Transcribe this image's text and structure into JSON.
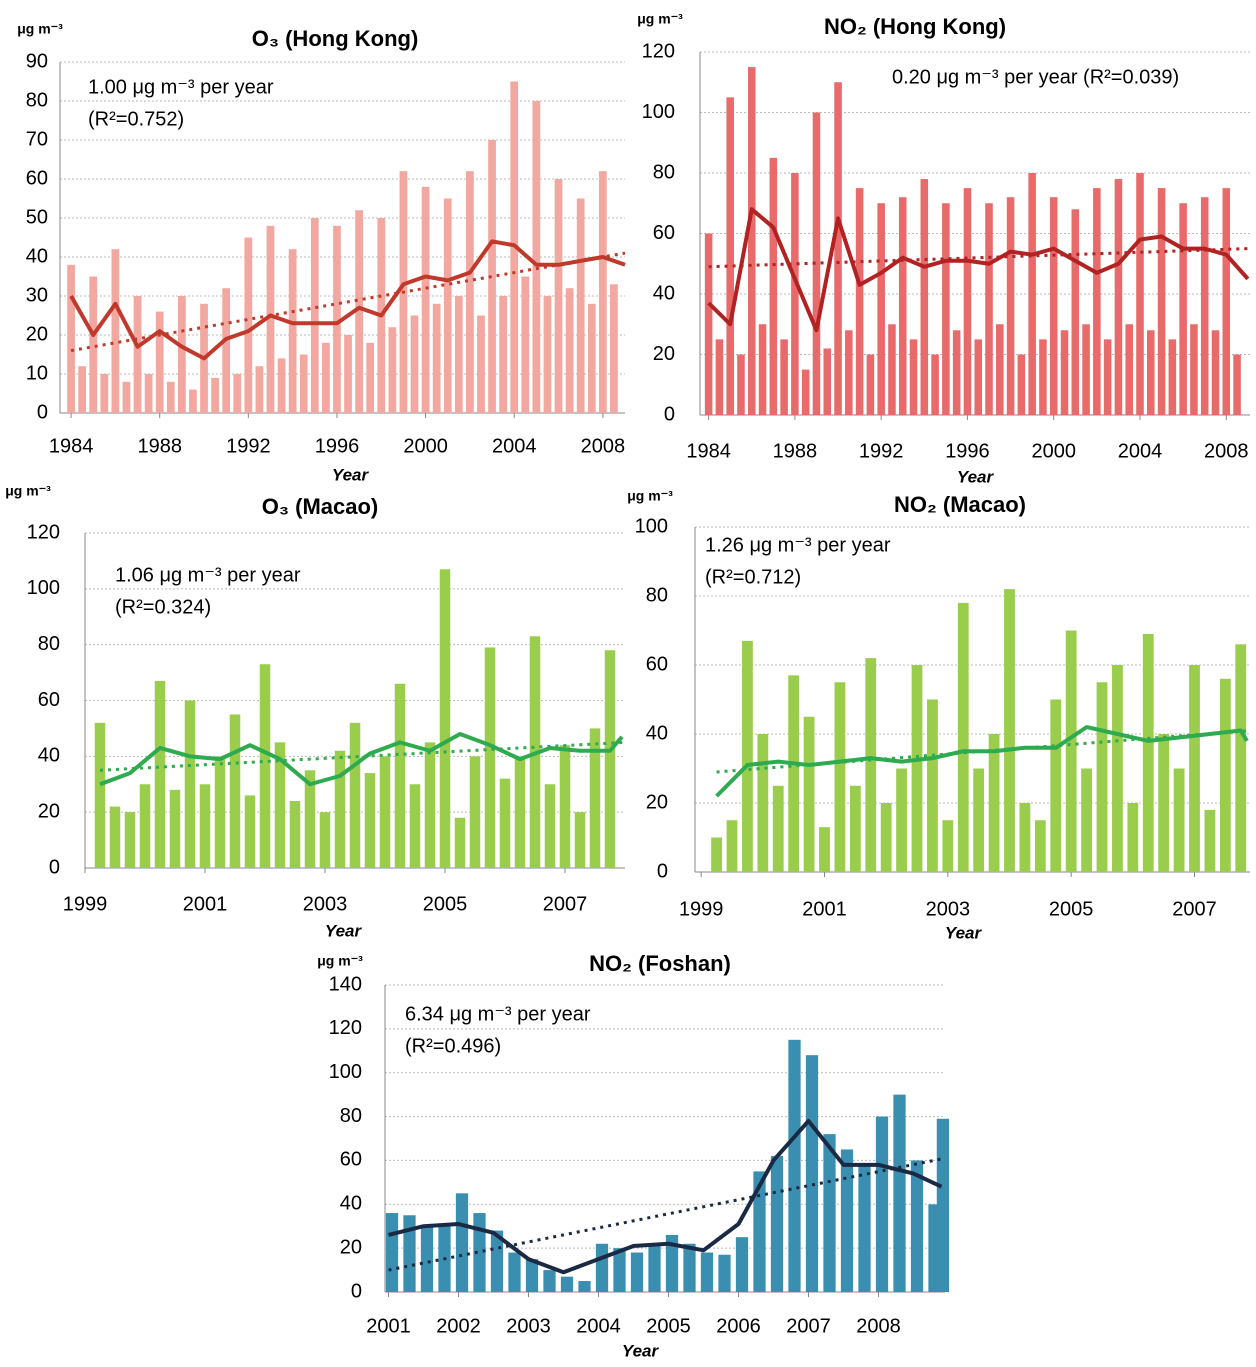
{
  "chart_data": [
    {
      "type": "bar",
      "title": "O₃ (Hong Kong)",
      "y_unit": "μg m⁻³",
      "x_label": "Year",
      "annotations": [
        "1.00 μg m⁻³ per year",
        "(R²=0.752)"
      ],
      "xlim": [
        1983.5,
        2009
      ],
      "ylim": [
        0,
        90
      ],
      "xticks": [
        1984,
        1988,
        1992,
        1996,
        2000,
        2004,
        2008
      ],
      "yticks": [
        0,
        10,
        20,
        30,
        40,
        50,
        60,
        70,
        80,
        90
      ],
      "grid": true,
      "series": [
        {
          "type": "bar",
          "color": "#f2a8a0",
          "x": [
            1984,
            1984.5,
            1985,
            1985.5,
            1986,
            1986.5,
            1987,
            1987.5,
            1988,
            1988.5,
            1989,
            1989.5,
            1990,
            1990.5,
            1991,
            1991.5,
            1992,
            1992.5,
            1993,
            1993.5,
            1994,
            1994.5,
            1995,
            1995.5,
            1996,
            1996.5,
            1997,
            1997.5,
            1998,
            1998.5,
            1999,
            1999.5,
            2000,
            2000.5,
            2001,
            2001.5,
            2002,
            2002.5,
            2003,
            2003.5,
            2004,
            2004.5,
            2005,
            2005.5,
            2006,
            2006.5,
            2007,
            2007.5,
            2008,
            2008.5
          ],
          "values": [
            38,
            12,
            35,
            10,
            42,
            8,
            30,
            10,
            26,
            8,
            30,
            6,
            28,
            9,
            32,
            10,
            45,
            12,
            48,
            14,
            42,
            15,
            50,
            18,
            48,
            20,
            52,
            18,
            50,
            22,
            62,
            25,
            58,
            28,
            55,
            30,
            62,
            25,
            70,
            30,
            85,
            35,
            80,
            30,
            60,
            32,
            55,
            28,
            62,
            33
          ]
        },
        {
          "type": "line",
          "color": "#c0392b",
          "x": [
            1984,
            1985,
            1986,
            1987,
            1988,
            1989,
            1990,
            1991,
            1992,
            1993,
            1994,
            1995,
            1996,
            1997,
            1998,
            1999,
            2000,
            2001,
            2002,
            2003,
            2004,
            2005,
            2006,
            2007,
            2008,
            2009
          ],
          "values": [
            30,
            20,
            28,
            17,
            21,
            17,
            14,
            19,
            21,
            25,
            23,
            23,
            23,
            27,
            25,
            33,
            35,
            34,
            36,
            44,
            43,
            38,
            38,
            39,
            40,
            38
          ]
        },
        {
          "type": "line",
          "dash": true,
          "color": "#c0392b",
          "x": [
            1984,
            2009
          ],
          "values": [
            16,
            41
          ]
        }
      ]
    },
    {
      "type": "bar",
      "title": "NO₂ (Hong Kong)",
      "y_unit": "μg m⁻³",
      "x_label": "Year",
      "annotations": [
        "0.20 μg m⁻³ per year (R²=0.039)"
      ],
      "xlim": [
        1983.6,
        2009.1
      ],
      "ylim": [
        0,
        120
      ],
      "xticks": [
        1984,
        1988,
        1992,
        1996,
        2000,
        2004,
        2008
      ],
      "yticks": [
        0,
        20,
        40,
        60,
        80,
        100,
        120
      ],
      "grid": true,
      "series": [
        {
          "type": "bar",
          "color": "#e86a6a",
          "x": [
            1984,
            1984.5,
            1985,
            1985.5,
            1986,
            1986.5,
            1987,
            1987.5,
            1988,
            1988.5,
            1989,
            1989.5,
            1990,
            1990.5,
            1991,
            1991.5,
            1992,
            1992.5,
            1993,
            1993.5,
            1994,
            1994.5,
            1995,
            1995.5,
            1996,
            1996.5,
            1997,
            1997.5,
            1998,
            1998.5,
            1999,
            1999.5,
            2000,
            2000.5,
            2001,
            2001.5,
            2002,
            2002.5,
            2003,
            2003.5,
            2004,
            2004.5,
            2005,
            2005.5,
            2006,
            2006.5,
            2007,
            2007.5,
            2008,
            2008.5
          ],
          "values": [
            60,
            25,
            105,
            20,
            115,
            30,
            85,
            25,
            80,
            15,
            100,
            22,
            110,
            28,
            75,
            20,
            70,
            30,
            72,
            25,
            78,
            20,
            70,
            28,
            75,
            25,
            70,
            30,
            72,
            20,
            80,
            25,
            72,
            28,
            68,
            30,
            75,
            25,
            78,
            30,
            80,
            28,
            75,
            25,
            70,
            30,
            72,
            28,
            75,
            20
          ]
        },
        {
          "type": "line",
          "color": "#b22222",
          "x": [
            1984,
            1985,
            1986,
            1987,
            1988,
            1989,
            1990,
            1991,
            1992,
            1993,
            1994,
            1995,
            1996,
            1997,
            1998,
            1999,
            2000,
            2001,
            2002,
            2003,
            2004,
            2005,
            2006,
            2007,
            2008,
            2009
          ],
          "values": [
            37,
            30,
            68,
            62,
            45,
            28,
            65,
            43,
            47,
            52,
            49,
            51,
            51,
            50,
            54,
            53,
            55,
            51,
            47,
            50,
            58,
            59,
            55,
            55,
            53,
            45
          ]
        },
        {
          "type": "line",
          "dash": true,
          "color": "#b22222",
          "x": [
            1984,
            2009
          ],
          "values": [
            49,
            55
          ]
        }
      ]
    },
    {
      "type": "bar",
      "title": "O₃ (Macao)",
      "y_unit": "μg m⁻³",
      "x_label": "Year",
      "annotations": [
        "1.06 μg m⁻³ per year",
        "(R²=0.324)"
      ],
      "xlim": [
        1999,
        2008
      ],
      "ylim": [
        0,
        120
      ],
      "xticks": [
        1999,
        2001,
        2003,
        2005,
        2007
      ],
      "yticks": [
        0,
        20,
        40,
        60,
        80,
        100,
        120
      ],
      "grid": true,
      "series": [
        {
          "type": "bar",
          "color": "#9acd4c",
          "x": [
            1999.25,
            1999.5,
            1999.75,
            2000,
            2000.25,
            2000.5,
            2000.75,
            2001,
            2001.25,
            2001.5,
            2001.75,
            2002,
            2002.25,
            2002.5,
            2002.75,
            2003,
            2003.25,
            2003.5,
            2003.75,
            2004,
            2004.25,
            2004.5,
            2004.75,
            2005,
            2005.25,
            2005.5,
            2005.75,
            2006,
            2006.25,
            2006.5,
            2006.75,
            2007,
            2007.25,
            2007.5,
            2007.75
          ],
          "values": [
            52,
            22,
            20,
            30,
            67,
            28,
            60,
            30,
            40,
            55,
            26,
            73,
            45,
            24,
            35,
            20,
            42,
            52,
            34,
            40,
            66,
            30,
            45,
            107,
            18,
            40,
            79,
            32,
            40,
            83,
            30,
            44,
            20,
            50,
            78
          ]
        },
        {
          "type": "line",
          "color": "#2eaa4f",
          "x": [
            1999.25,
            1999.75,
            2000.25,
            2000.75,
            2001.25,
            2001.75,
            2002.25,
            2002.75,
            2003.25,
            2003.75,
            2004.25,
            2004.75,
            2005.25,
            2005.75,
            2006.25,
            2006.75,
            2007.25,
            2007.75,
            2007.95
          ],
          "values": [
            30,
            34,
            43,
            40,
            39,
            44,
            39,
            30,
            33,
            41,
            45,
            42,
            48,
            44,
            39,
            43,
            42,
            42,
            47
          ]
        },
        {
          "type": "line",
          "dash": true,
          "color": "#2eaa4f",
          "x": [
            1999.25,
            2008
          ],
          "values": [
            35,
            45
          ]
        }
      ]
    },
    {
      "type": "bar",
      "title": "NO₂ (Macao)",
      "y_unit": "μg m⁻³",
      "x_label": "Year",
      "annotations": [
        "1.26 μg m⁻³ per year",
        "(R²=0.712)"
      ],
      "xlim": [
        1998.9,
        2007.9
      ],
      "ylim": [
        0,
        100
      ],
      "xticks": [
        1999,
        2001,
        2003,
        2005,
        2007
      ],
      "yticks": [
        0,
        20,
        40,
        60,
        80,
        100
      ],
      "grid": true,
      "series": [
        {
          "type": "bar",
          "color": "#9acd4c",
          "x": [
            1999.25,
            1999.5,
            1999.75,
            2000,
            2000.25,
            2000.5,
            2000.75,
            2001,
            2001.25,
            2001.5,
            2001.75,
            2002,
            2002.25,
            2002.5,
            2002.75,
            2003,
            2003.25,
            2003.5,
            2003.75,
            2004,
            2004.25,
            2004.5,
            2004.75,
            2005,
            2005.25,
            2005.5,
            2005.75,
            2006,
            2006.25,
            2006.5,
            2006.75,
            2007,
            2007.25,
            2007.5,
            2007.75
          ],
          "values": [
            10,
            15,
            67,
            40,
            25,
            57,
            45,
            13,
            55,
            25,
            62,
            20,
            30,
            60,
            50,
            15,
            78,
            30,
            40,
            82,
            20,
            15,
            50,
            70,
            30,
            55,
            60,
            20,
            69,
            40,
            30,
            60,
            18,
            56,
            66
          ]
        },
        {
          "type": "line",
          "color": "#2eaa4f",
          "x": [
            1999.25,
            1999.75,
            2000.25,
            2000.75,
            2001.25,
            2001.75,
            2002.25,
            2002.75,
            2003.25,
            2003.75,
            2004.25,
            2004.75,
            2005.25,
            2005.75,
            2006.25,
            2006.75,
            2007.25,
            2007.75,
            2007.85
          ],
          "values": [
            22,
            31,
            32,
            31,
            32,
            33,
            32,
            33,
            35,
            35,
            36,
            36,
            42,
            40,
            38,
            39,
            40,
            41,
            38
          ]
        },
        {
          "type": "line",
          "dash": true,
          "color": "#2eaa4f",
          "x": [
            1999.25,
            2007.9
          ],
          "values": [
            29,
            41
          ]
        }
      ]
    },
    {
      "type": "bar",
      "title": "NO₂ (Foshan)",
      "y_unit": "μg m⁻³",
      "x_label": "Year",
      "annotations": [
        "6.34 μg m⁻³ per year",
        "(R²=0.496)"
      ],
      "xlim": [
        2000.95,
        2008.95
      ],
      "ylim": [
        0,
        140
      ],
      "xticks": [
        2001,
        2002,
        2003,
        2004,
        2005,
        2006,
        2007,
        2008
      ],
      "yticks": [
        0,
        20,
        40,
        60,
        80,
        100,
        120,
        140
      ],
      "grid": true,
      "series": [
        {
          "type": "bar",
          "color": "#3a8fb0",
          "x": [
            2001.05,
            2001.3,
            2001.55,
            2001.8,
            2002.05,
            2002.3,
            2002.55,
            2002.8,
            2003.05,
            2003.3,
            2003.55,
            2003.8,
            2004.05,
            2004.3,
            2004.55,
            2004.8,
            2005.05,
            2005.3,
            2005.55,
            2005.8,
            2006.05,
            2006.3,
            2006.55,
            2006.8,
            2007.05,
            2007.3,
            2007.55,
            2007.8,
            2008.05,
            2008.3,
            2008.55,
            2008.8,
            2008.92
          ],
          "values": [
            36,
            35,
            30,
            30,
            45,
            36,
            28,
            18,
            15,
            10,
            7,
            5,
            22,
            20,
            18,
            22,
            26,
            22,
            18,
            17,
            25,
            55,
            62,
            115,
            108,
            72,
            65,
            58,
            80,
            90,
            60,
            40,
            79
          ]
        },
        {
          "type": "line",
          "color": "#1b2a44",
          "x": [
            2001,
            2001.5,
            2002,
            2002.5,
            2003,
            2003.5,
            2004,
            2004.5,
            2005,
            2005.5,
            2006,
            2006.5,
            2007,
            2007.5,
            2008,
            2008.5,
            2008.9
          ],
          "values": [
            26,
            30,
            31,
            27,
            15,
            9,
            15,
            21,
            22,
            19,
            31,
            60,
            78,
            58,
            58,
            54,
            48
          ]
        },
        {
          "type": "line",
          "dash": true,
          "color": "#1b2a44",
          "x": [
            2001,
            2008.95
          ],
          "values": [
            10,
            61
          ]
        }
      ]
    }
  ]
}
